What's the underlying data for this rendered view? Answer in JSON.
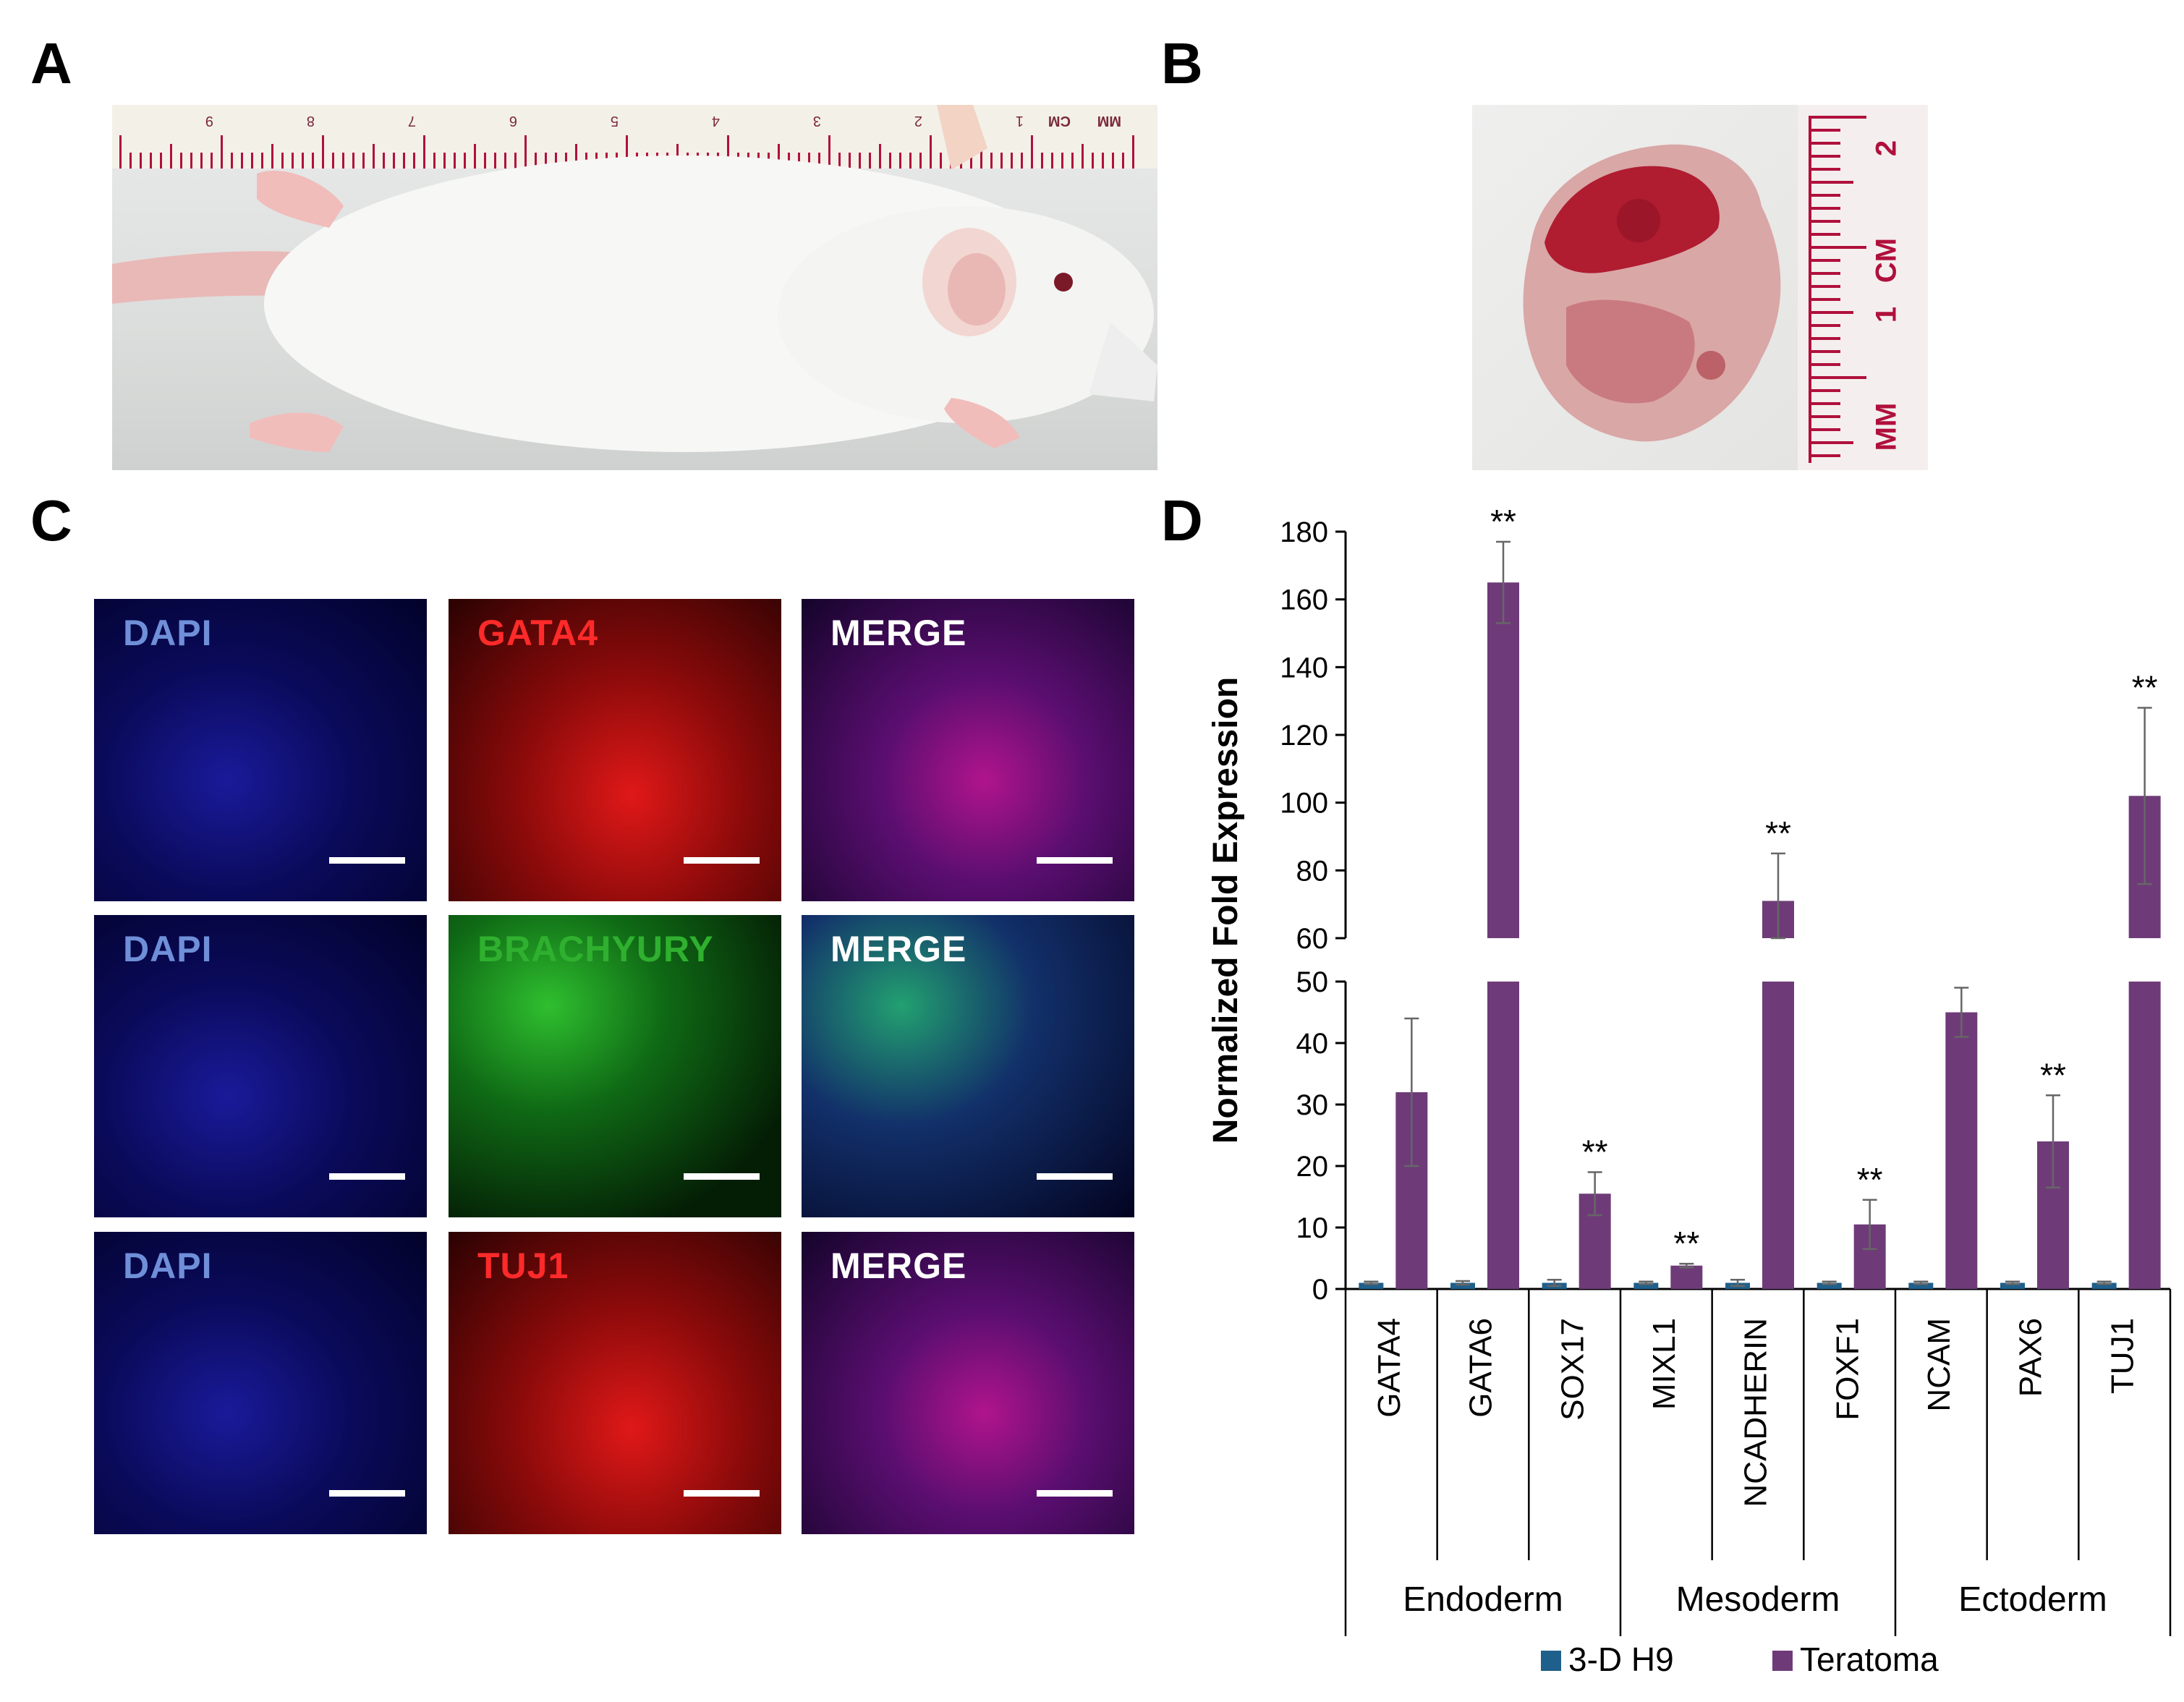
{
  "panel_labels": {
    "a": "A",
    "b": "B",
    "c": "C",
    "d": "D"
  },
  "ruler_a": {
    "numbers": [
      "9",
      "8",
      "7",
      "6",
      "5",
      "4",
      "3",
      "2",
      "1"
    ],
    "cm_label": "CM",
    "mm_label": "MM"
  },
  "ruler_b": {
    "numbers": [
      "2",
      "1"
    ],
    "cm_label": "CM",
    "mm_label": "MM"
  },
  "panel_c": {
    "rows": [
      {
        "marker": "DAPI",
        "stain": "GATA4",
        "merge": "MERGE",
        "stain_color": "#ff2a2a"
      },
      {
        "marker": "DAPI",
        "stain": "BRACHYURY",
        "merge": "MERGE",
        "stain_color": "#2fb02f"
      },
      {
        "marker": "DAPI",
        "stain": "TUJ1",
        "merge": "MERGE",
        "stain_color": "#ff2a2a"
      }
    ],
    "dapi_color": "#6f8fd8"
  },
  "chart_data": {
    "type": "bar",
    "ylabel": "Normalized Fold Expression",
    "axis_break": {
      "lower": [
        0,
        50
      ],
      "upper": [
        60,
        180
      ]
    },
    "y_ticks_lower": [
      0,
      10,
      20,
      30,
      40,
      50
    ],
    "y_ticks_upper": [
      60,
      80,
      100,
      120,
      140,
      160,
      180
    ],
    "categories": [
      "GATA4",
      "GATA6",
      "SOX17",
      "MIXL1",
      "NCADHERIN",
      "FOXF1",
      "NCAM",
      "PAX6",
      "TUJ1"
    ],
    "groups": [
      {
        "label": "Endoderm",
        "categories": [
          "GATA4",
          "GATA6",
          "SOX17"
        ]
      },
      {
        "label": "Mesoderm",
        "categories": [
          "MIXL1",
          "NCADHERIN",
          "FOXF1"
        ]
      },
      {
        "label": "Ectoderm",
        "categories": [
          "NCAM",
          "PAX6",
          "TUJ1"
        ]
      }
    ],
    "series": [
      {
        "name": "3-D H9",
        "color": "#1f5f8b",
        "values": [
          1,
          1,
          1,
          1,
          1,
          1,
          1,
          1,
          1
        ],
        "errors": [
          0.2,
          0.3,
          0.5,
          0.2,
          0.5,
          0.2,
          0.2,
          0.2,
          0.2
        ]
      },
      {
        "name": "Teratoma",
        "color": "#6e3b78",
        "values": [
          32,
          165,
          15.5,
          3.8,
          71,
          10.5,
          45,
          24,
          102
        ],
        "errors": [
          12,
          12,
          3.5,
          0.3,
          14,
          4,
          4,
          7.5,
          26
        ]
      }
    ],
    "significance": [
      "",
      "**",
      "**",
      "**",
      "**",
      "**",
      "",
      "**",
      "**"
    ],
    "legend_position": "bottom"
  }
}
